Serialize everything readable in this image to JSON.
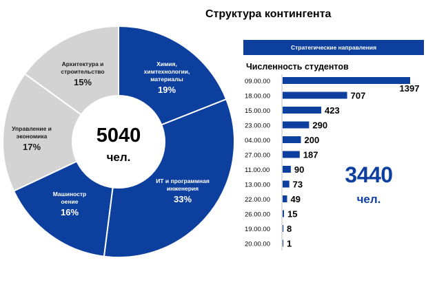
{
  "title": "Структура контингента",
  "chart_data": [
    {
      "type": "pie",
      "center_value": "5040",
      "center_unit": "чел.",
      "slices": [
        {
          "label": "Химия, химтехнологии, материалы",
          "percent": "19%",
          "value": 19,
          "color": "#0d3f9f",
          "label_color": "#ffffff"
        },
        {
          "label": "ИТ и программная инженерия",
          "percent": "33%",
          "value": 33,
          "color": "#0d3f9f",
          "label_color": "#ffffff"
        },
        {
          "label": "Машиностр оение",
          "percent": "16%",
          "value": 16,
          "color": "#0d3f9f",
          "label_color": "#ffffff"
        },
        {
          "label": "Управление и экономика",
          "percent": "17%",
          "value": 17,
          "color": "#d3d3d3",
          "label_color": "#1a1a1a"
        },
        {
          "label": "Архитектура и строительство",
          "percent": "15%",
          "value": 15,
          "color": "#d3d3d3",
          "label_color": "#1a1a1a"
        }
      ]
    },
    {
      "type": "bar",
      "orientation": "horizontal",
      "banner": "Стратегические направления",
      "title": "Численность студентов",
      "categories": [
        "09.00.00",
        "18.00.00",
        "15.00.00",
        "23.00.00",
        "04.00.00",
        "27.00.00",
        "11.00.00",
        "13.00.00",
        "22.00.00",
        "26.00.00",
        "19.00.00",
        "20.00.00"
      ],
      "values": [
        1397,
        707,
        423,
        290,
        200,
        187,
        90,
        73,
        49,
        15,
        8,
        1
      ],
      "bar_color": "#0d3f9f",
      "total_value": "3440",
      "total_unit": "чел."
    }
  ]
}
